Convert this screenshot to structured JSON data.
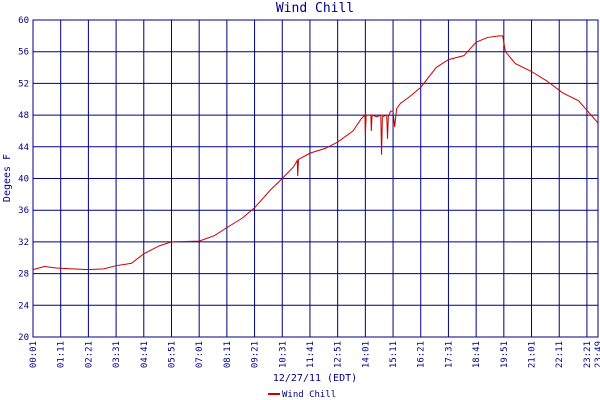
{
  "chart_data": {
    "type": "line",
    "title": "Wind Chill",
    "xlabel": "12/27/11 (EDT)",
    "ylabel": "Degees F",
    "x": [
      1,
      30,
      60,
      100,
      141,
      180,
      211,
      250,
      281,
      320,
      351,
      421,
      460,
      491,
      530,
      561,
      600,
      631,
      660,
      669,
      670,
      672,
      701,
      740,
      771,
      810,
      830,
      840,
      841,
      843,
      855,
      856,
      858,
      870,
      880,
      882,
      884,
      895,
      897,
      899,
      905,
      911,
      915,
      920,
      930,
      950,
      981,
      1020,
      1051,
      1090,
      1121,
      1150,
      1180,
      1188,
      1195,
      1220,
      1261,
      1300,
      1340,
      1380,
      1429
    ],
    "series": [
      {
        "name": "Wind Chill",
        "color": "#cc0000",
        "values": [
          28.5,
          28.9,
          28.7,
          28.6,
          28.5,
          28.6,
          29,
          29.3,
          30.5,
          31.5,
          32,
          32.1,
          32.8,
          33.8,
          35,
          36.3,
          38.5,
          40,
          41.5,
          42.3,
          40.3,
          42.4,
          43.2,
          43.8,
          44.6,
          46,
          47.5,
          48,
          45.5,
          48,
          48,
          46,
          48,
          47.8,
          48,
          43,
          47.8,
          48,
          45,
          47.8,
          48.5,
          48.5,
          46.5,
          48.8,
          49.5,
          50.2,
          51.5,
          54,
          55,
          55.5,
          57.2,
          57.8,
          58,
          58,
          56,
          54.5,
          53.5,
          52.3,
          50.8,
          49.8,
          47
        ]
      }
    ],
    "xlim": [
      1,
      1429
    ],
    "xticks": [
      {
        "value": 1,
        "label": "00:01"
      },
      {
        "value": 71,
        "label": "01:11"
      },
      {
        "value": 141,
        "label": "02:21"
      },
      {
        "value": 211,
        "label": "03:31"
      },
      {
        "value": 281,
        "label": "04:41"
      },
      {
        "value": 351,
        "label": "05:51"
      },
      {
        "value": 421,
        "label": "07:01"
      },
      {
        "value": 491,
        "label": "08:11"
      },
      {
        "value": 561,
        "label": "09:21"
      },
      {
        "value": 631,
        "label": "10:31"
      },
      {
        "value": 701,
        "label": "11:41"
      },
      {
        "value": 771,
        "label": "12:51"
      },
      {
        "value": 841,
        "label": "14:01"
      },
      {
        "value": 911,
        "label": "15:11"
      },
      {
        "value": 981,
        "label": "16:21"
      },
      {
        "value": 1051,
        "label": "17:31"
      },
      {
        "value": 1121,
        "label": "18:41"
      },
      {
        "value": 1191,
        "label": "19:51"
      },
      {
        "value": 1261,
        "label": "21:01"
      },
      {
        "value": 1331,
        "label": "22:11"
      },
      {
        "value": 1401,
        "label": "23:21"
      },
      {
        "value": 1429,
        "label": "23:49"
      }
    ],
    "ylim": [
      20,
      60
    ],
    "yticks": [
      20,
      24,
      28,
      32,
      36,
      40,
      44,
      48,
      52,
      56,
      60
    ],
    "grid": true
  }
}
